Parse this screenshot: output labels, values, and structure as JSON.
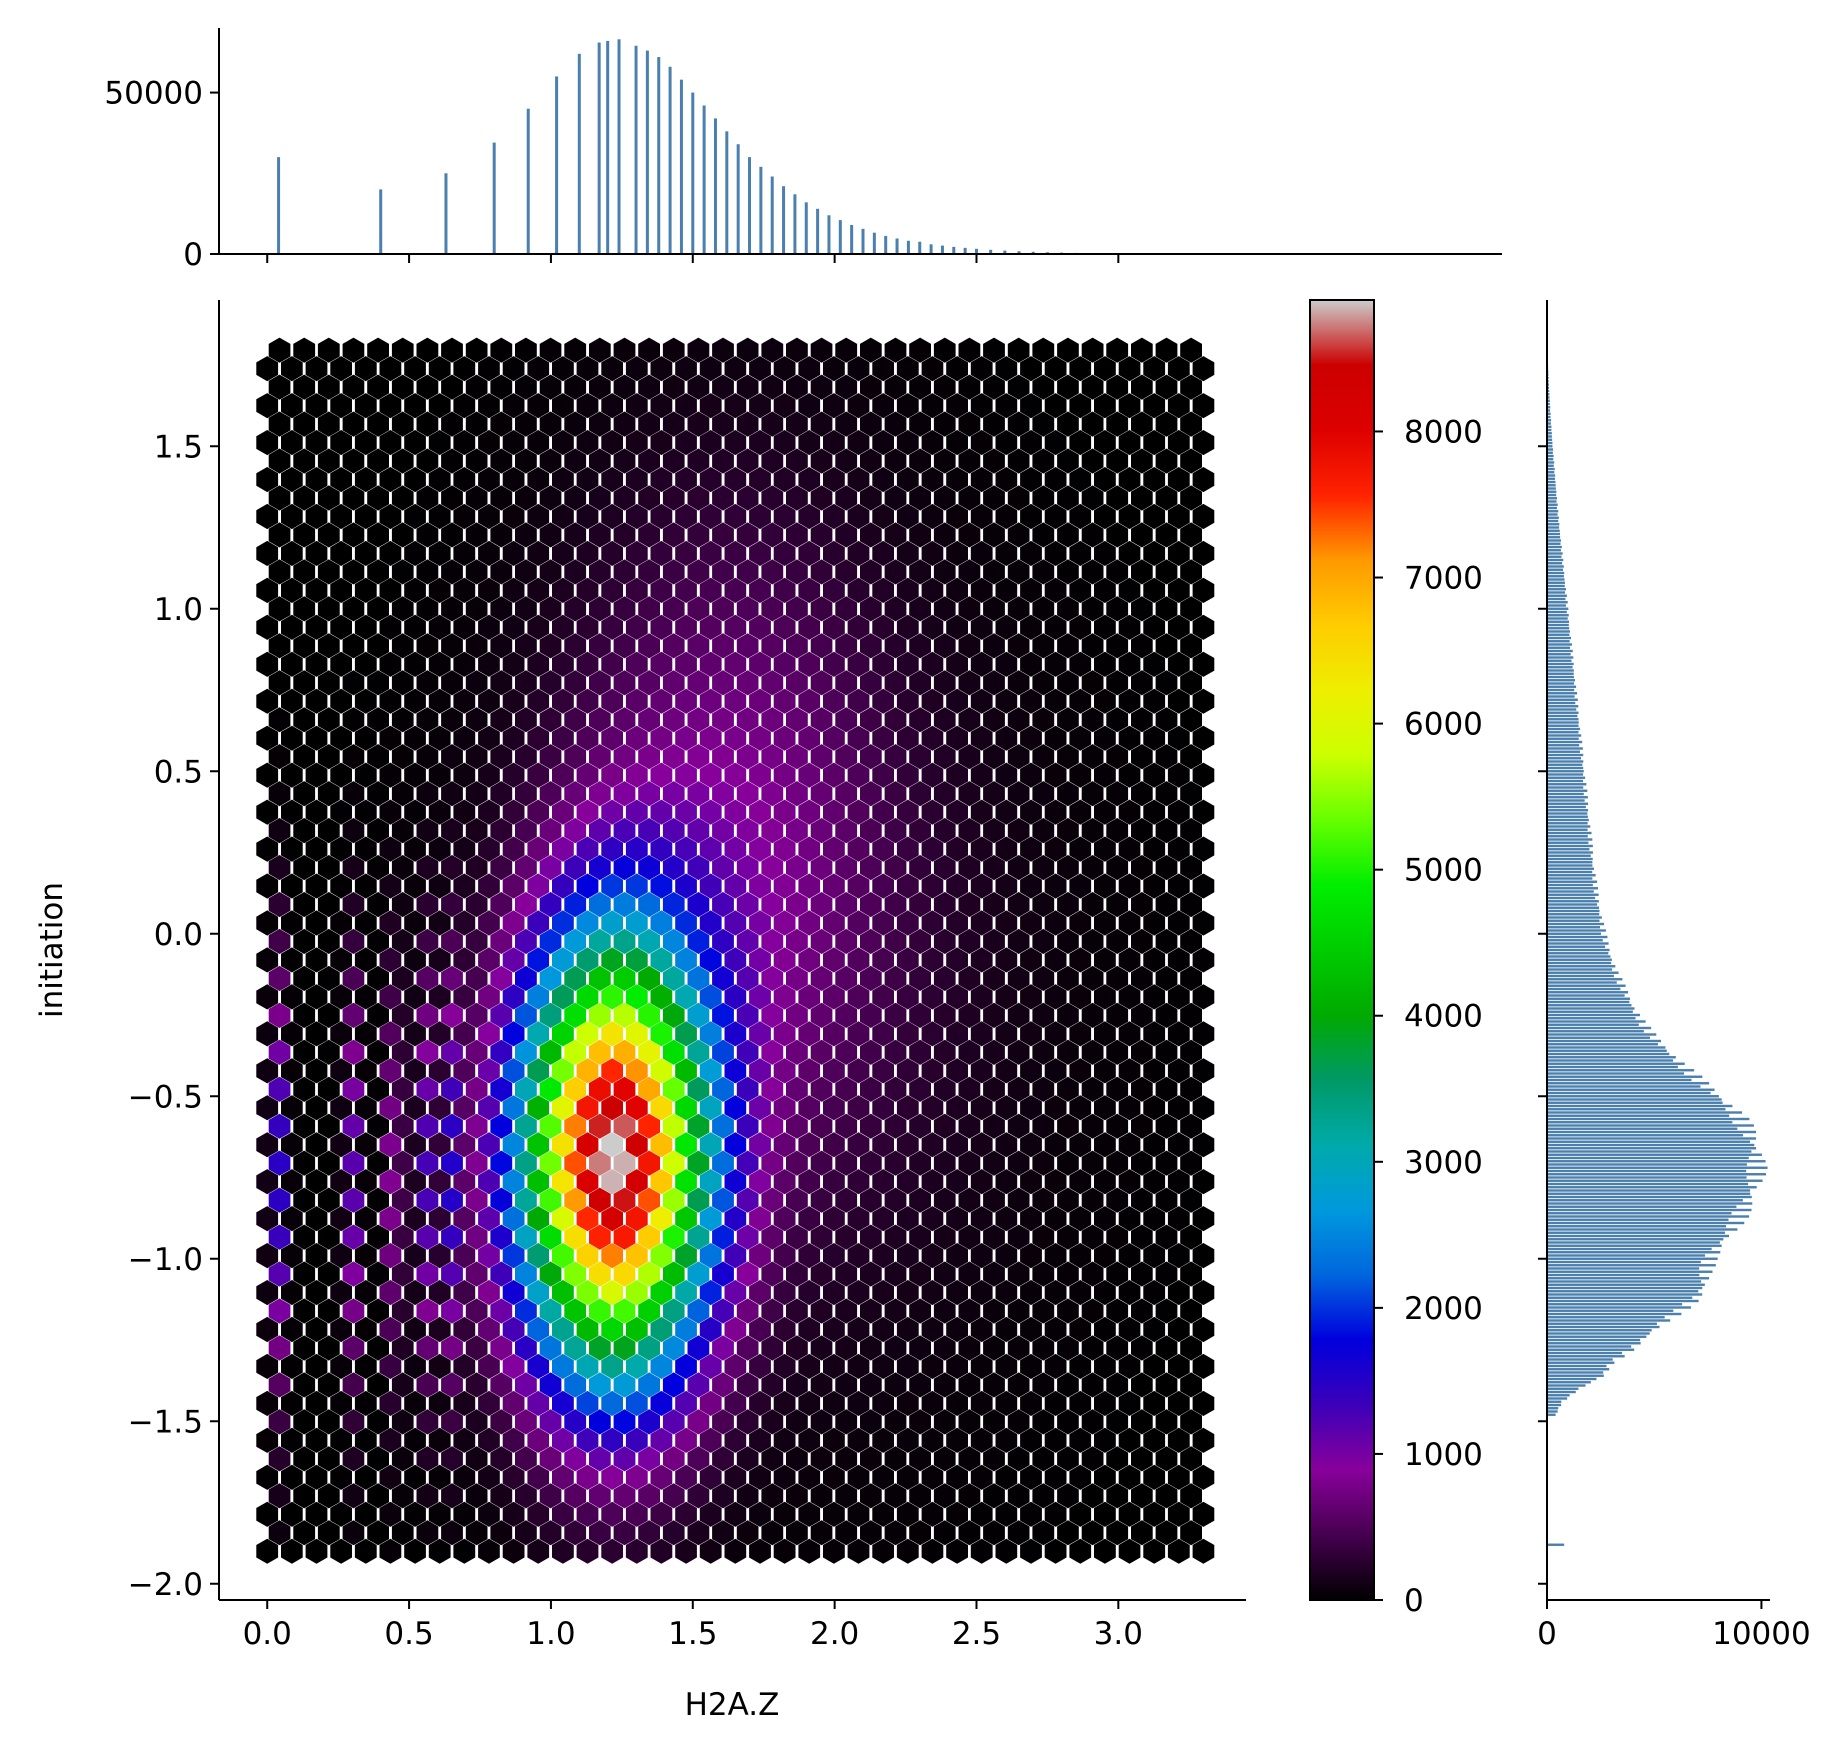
{
  "chart_data": {
    "type": "heatmap",
    "subtype": "hexbin joint plot with marginal histograms",
    "xlabel": "H2A.Z",
    "ylabel": "initiation",
    "title": "",
    "xlim": [
      -0.17,
      3.45
    ],
    "ylim": [
      -2.05,
      1.95
    ],
    "x_ticks": [
      "0.0",
      "0.5",
      "1.0",
      "1.5",
      "2.0",
      "2.5",
      "3.0"
    ],
    "x_tick_values": [
      0.0,
      0.5,
      1.0,
      1.5,
      2.0,
      2.5,
      3.0
    ],
    "y_ticks": [
      "−2.0",
      "−1.5",
      "−1.0",
      "−0.5",
      "0.0",
      "0.5",
      "1.0",
      "1.5"
    ],
    "y_tick_values": [
      -2.0,
      -1.5,
      -1.0,
      -0.5,
      0.0,
      0.5,
      1.0,
      1.5
    ],
    "hexbin_extent": {
      "x": [
        0.0,
        3.3
      ],
      "y": [
        -1.9,
        1.78
      ]
    },
    "colormap": "nipy_spectral",
    "colorbar": {
      "range": [
        0,
        8900
      ],
      "ticks": [
        "0",
        "1000",
        "2000",
        "3000",
        "4000",
        "5000",
        "6000",
        "7000",
        "8000"
      ],
      "tick_values": [
        0,
        1000,
        2000,
        3000,
        4000,
        5000,
        6000,
        7000,
        8000
      ]
    },
    "density_peak": {
      "x": 1.23,
      "y": -0.65,
      "count": 8700
    },
    "density_components": [
      {
        "cx": 1.22,
        "cy": -0.7,
        "sx": 0.22,
        "sy": 0.45,
        "count": 8700
      },
      {
        "cx": 1.6,
        "cy": 0.3,
        "sx": 0.4,
        "sy": 0.7,
        "count": 700
      },
      {
        "cx": 1.9,
        "cy": -0.2,
        "sx": 0.55,
        "sy": 0.8,
        "count": 250
      }
    ],
    "discrete_x_columns": [
      0.04,
      0.3,
      0.45,
      0.56,
      0.65
    ],
    "marginal_x_histogram": {
      "yticks": [
        "0",
        "50000"
      ],
      "ytick_values": [
        0,
        50000
      ],
      "ylim": [
        0,
        70000
      ],
      "bars": [
        {
          "x": 0.04,
          "count": 30000
        },
        {
          "x": 0.4,
          "count": 20000
        },
        {
          "x": 0.63,
          "count": 25000
        },
        {
          "x": 0.8,
          "count": 34500
        },
        {
          "x": 0.92,
          "count": 45000
        },
        {
          "x": 1.02,
          "count": 55000
        },
        {
          "x": 1.1,
          "count": 62000
        },
        {
          "x": 1.17,
          "count": 65500
        },
        {
          "x": 1.2,
          "count": 66000
        },
        {
          "x": 1.24,
          "count": 66500
        },
        {
          "x": 1.3,
          "count": 64500
        },
        {
          "x": 1.34,
          "count": 63000
        },
        {
          "x": 1.38,
          "count": 61000
        },
        {
          "x": 1.42,
          "count": 58000
        },
        {
          "x": 1.46,
          "count": 54000
        },
        {
          "x": 1.5,
          "count": 50000
        },
        {
          "x": 1.54,
          "count": 46000
        },
        {
          "x": 1.58,
          "count": 42000
        },
        {
          "x": 1.62,
          "count": 38000
        },
        {
          "x": 1.66,
          "count": 34000
        },
        {
          "x": 1.7,
          "count": 30000
        },
        {
          "x": 1.74,
          "count": 27000
        },
        {
          "x": 1.78,
          "count": 24000
        },
        {
          "x": 1.82,
          "count": 21000
        },
        {
          "x": 1.86,
          "count": 18500
        },
        {
          "x": 1.9,
          "count": 16000
        },
        {
          "x": 1.94,
          "count": 14000
        },
        {
          "x": 1.98,
          "count": 12000
        },
        {
          "x": 2.02,
          "count": 10500
        },
        {
          "x": 2.06,
          "count": 9000
        },
        {
          "x": 2.1,
          "count": 7800
        },
        {
          "x": 2.14,
          "count": 6600
        },
        {
          "x": 2.18,
          "count": 5600
        },
        {
          "x": 2.22,
          "count": 4800
        },
        {
          "x": 2.26,
          "count": 4100
        },
        {
          "x": 2.3,
          "count": 3800
        },
        {
          "x": 2.34,
          "count": 3000
        },
        {
          "x": 2.38,
          "count": 2600
        },
        {
          "x": 2.42,
          "count": 2200
        },
        {
          "x": 2.46,
          "count": 1900
        },
        {
          "x": 2.5,
          "count": 1600
        },
        {
          "x": 2.55,
          "count": 1300
        },
        {
          "x": 2.6,
          "count": 1050
        },
        {
          "x": 2.65,
          "count": 850
        },
        {
          "x": 2.7,
          "count": 680
        },
        {
          "x": 2.75,
          "count": 540
        },
        {
          "x": 2.8,
          "count": 430
        },
        {
          "x": 2.85,
          "count": 340
        },
        {
          "x": 2.9,
          "count": 270
        },
        {
          "x": 2.95,
          "count": 210
        },
        {
          "x": 3.0,
          "count": 160
        },
        {
          "x": 3.05,
          "count": 120
        },
        {
          "x": 3.1,
          "count": 90
        },
        {
          "x": 3.2,
          "count": 60
        },
        {
          "x": 3.3,
          "count": 30
        }
      ]
    },
    "marginal_y_histogram": {
      "xticks": [
        "0",
        "10000"
      ],
      "xtick_values": [
        0,
        10000
      ],
      "xlim": [
        0,
        10400
      ],
      "bins": [
        {
          "y": -1.88,
          "count": 800
        },
        {
          "y": -1.5,
          "count": 0
        },
        {
          "y": -1.48,
          "count": 400
        },
        {
          "y": -1.44,
          "count": 700
        },
        {
          "y": -1.4,
          "count": 1500
        },
        {
          "y": -1.36,
          "count": 2600
        },
        {
          "y": -1.32,
          "count": 3000
        },
        {
          "y": -1.28,
          "count": 3900
        },
        {
          "y": -1.24,
          "count": 4600
        },
        {
          "y": -1.2,
          "count": 5300
        },
        {
          "y": -1.16,
          "count": 6200
        },
        {
          "y": -1.12,
          "count": 7000
        },
        {
          "y": -1.08,
          "count": 7300
        },
        {
          "y": -1.04,
          "count": 7400
        },
        {
          "y": -1.0,
          "count": 7600
        },
        {
          "y": -0.96,
          "count": 8000
        },
        {
          "y": -0.92,
          "count": 8500
        },
        {
          "y": -0.88,
          "count": 8900
        },
        {
          "y": -0.84,
          "count": 9200
        },
        {
          "y": -0.8,
          "count": 9500
        },
        {
          "y": -0.76,
          "count": 9700
        },
        {
          "y": -0.72,
          "count": 9800
        },
        {
          "y": -0.68,
          "count": 9750
        },
        {
          "y": -0.64,
          "count": 9600
        },
        {
          "y": -0.6,
          "count": 9300
        },
        {
          "y": -0.56,
          "count": 8900
        },
        {
          "y": -0.52,
          "count": 8300
        },
        {
          "y": -0.48,
          "count": 7600
        },
        {
          "y": -0.44,
          "count": 6900
        },
        {
          "y": -0.4,
          "count": 6200
        },
        {
          "y": -0.36,
          "count": 5600
        },
        {
          "y": -0.32,
          "count": 5000
        },
        {
          "y": -0.28,
          "count": 4500
        },
        {
          "y": -0.24,
          "count": 4100
        },
        {
          "y": -0.2,
          "count": 3800
        },
        {
          "y": -0.16,
          "count": 3500
        },
        {
          "y": -0.12,
          "count": 3200
        },
        {
          "y": -0.08,
          "count": 3000
        },
        {
          "y": -0.04,
          "count": 2800
        },
        {
          "y": 0.0,
          "count": 2650
        },
        {
          "y": 0.1,
          "count": 2350
        },
        {
          "y": 0.2,
          "count": 2150
        },
        {
          "y": 0.3,
          "count": 2000
        },
        {
          "y": 0.4,
          "count": 1850
        },
        {
          "y": 0.5,
          "count": 1700
        },
        {
          "y": 0.6,
          "count": 1550
        },
        {
          "y": 0.7,
          "count": 1400
        },
        {
          "y": 0.8,
          "count": 1250
        },
        {
          "y": 0.9,
          "count": 1100
        },
        {
          "y": 1.0,
          "count": 950
        },
        {
          "y": 1.1,
          "count": 800
        },
        {
          "y": 1.2,
          "count": 650
        },
        {
          "y": 1.3,
          "count": 500
        },
        {
          "y": 1.4,
          "count": 380
        },
        {
          "y": 1.5,
          "count": 260
        },
        {
          "y": 1.6,
          "count": 160
        },
        {
          "y": 1.7,
          "count": 80
        },
        {
          "y": 1.78,
          "count": 30
        }
      ]
    },
    "colors": {
      "histogram": "#4a7fae",
      "background": "#ffffff",
      "axes": "#000000"
    }
  }
}
